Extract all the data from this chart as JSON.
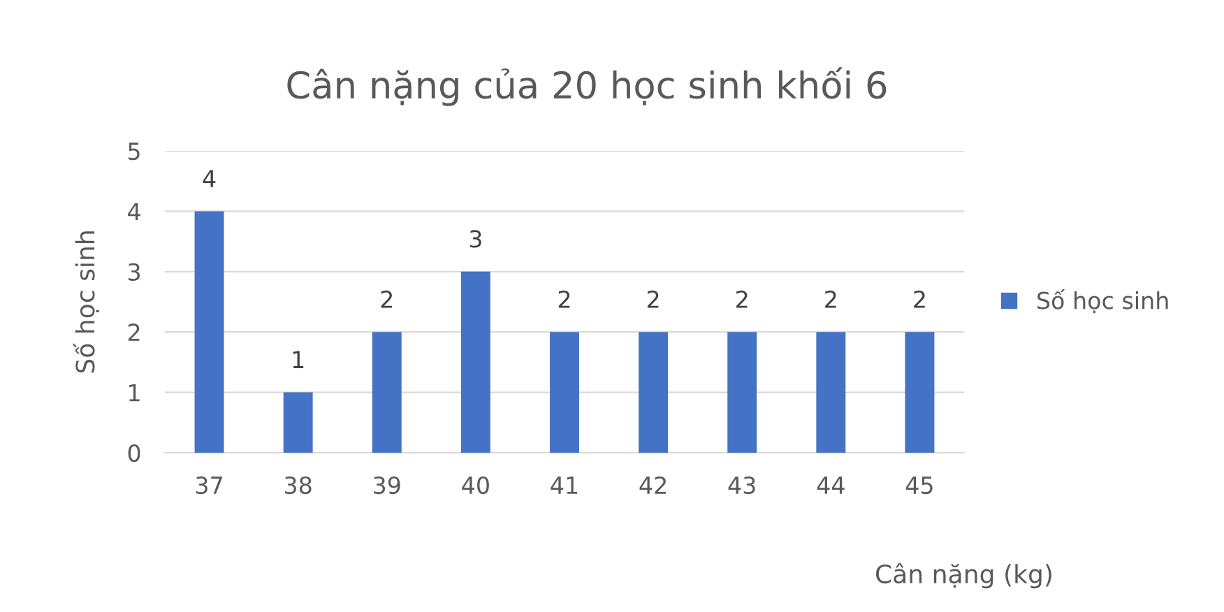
{
  "chart_data": {
    "type": "bar",
    "title": "Cân nặng của 20 học sinh khối 6",
    "xlabel": "Cân nặng (kg)",
    "ylabel": "Số học sinh",
    "categories": [
      "37",
      "38",
      "39",
      "40",
      "41",
      "42",
      "43",
      "44",
      "45"
    ],
    "series": [
      {
        "name": "Số học sinh",
        "color": "#4472c4",
        "values": [
          4,
          1,
          2,
          3,
          2,
          2,
          2,
          2,
          2
        ]
      }
    ],
    "ylim": [
      0,
      5
    ],
    "yticks": [
      0,
      1,
      2,
      3,
      4,
      5
    ],
    "grid": "y",
    "legend": "right",
    "data_labels": true
  }
}
